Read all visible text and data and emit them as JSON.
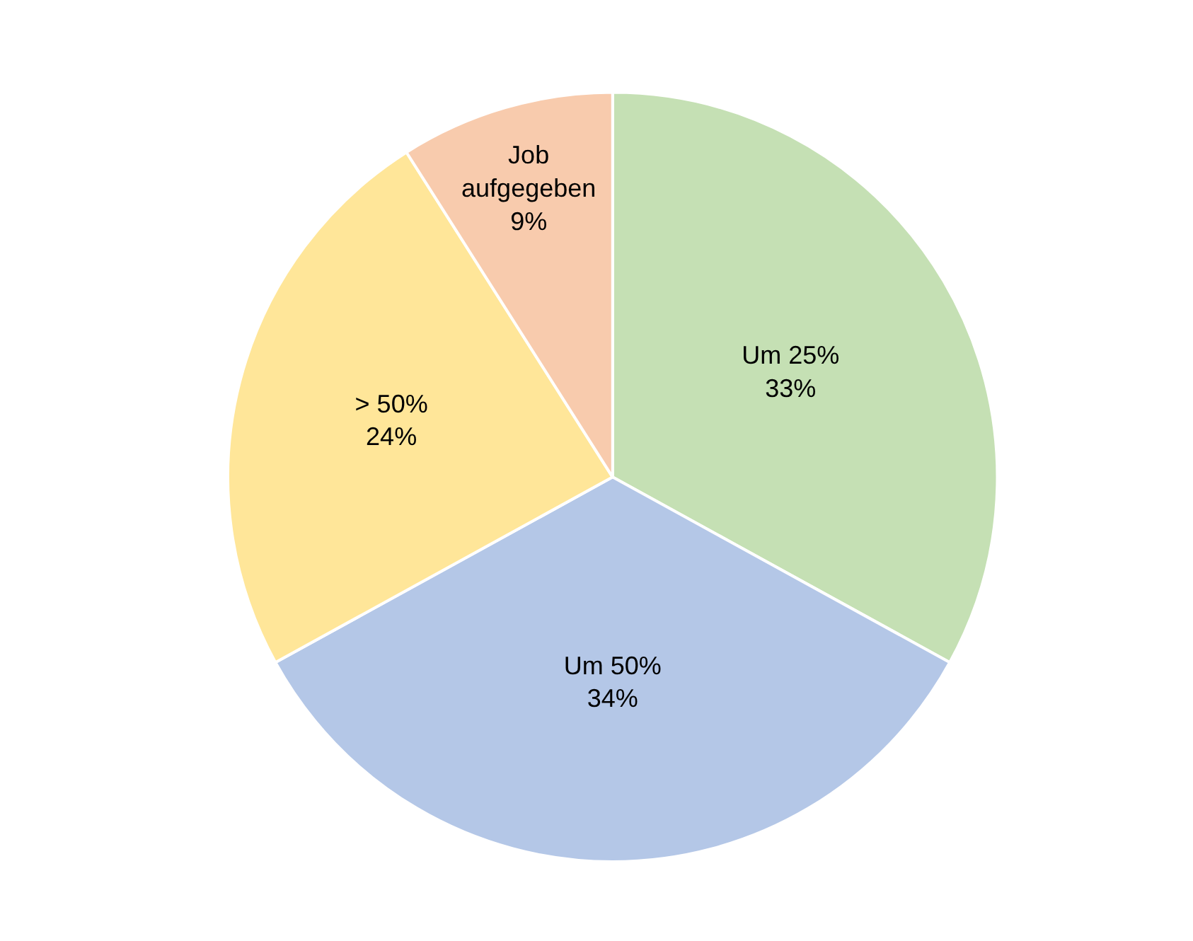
{
  "chart_data": {
    "type": "pie",
    "categories": [
      "Um 25%",
      "Um 50%",
      "> 50%",
      "Job aufgegeben"
    ],
    "values": [
      33,
      34,
      24,
      9
    ],
    "value_labels": [
      "33%",
      "34%",
      "24%",
      "9%"
    ],
    "colors": [
      "#c5e0b4",
      "#b4c7e7",
      "#ffe699",
      "#f8cbad"
    ],
    "legend": false
  }
}
